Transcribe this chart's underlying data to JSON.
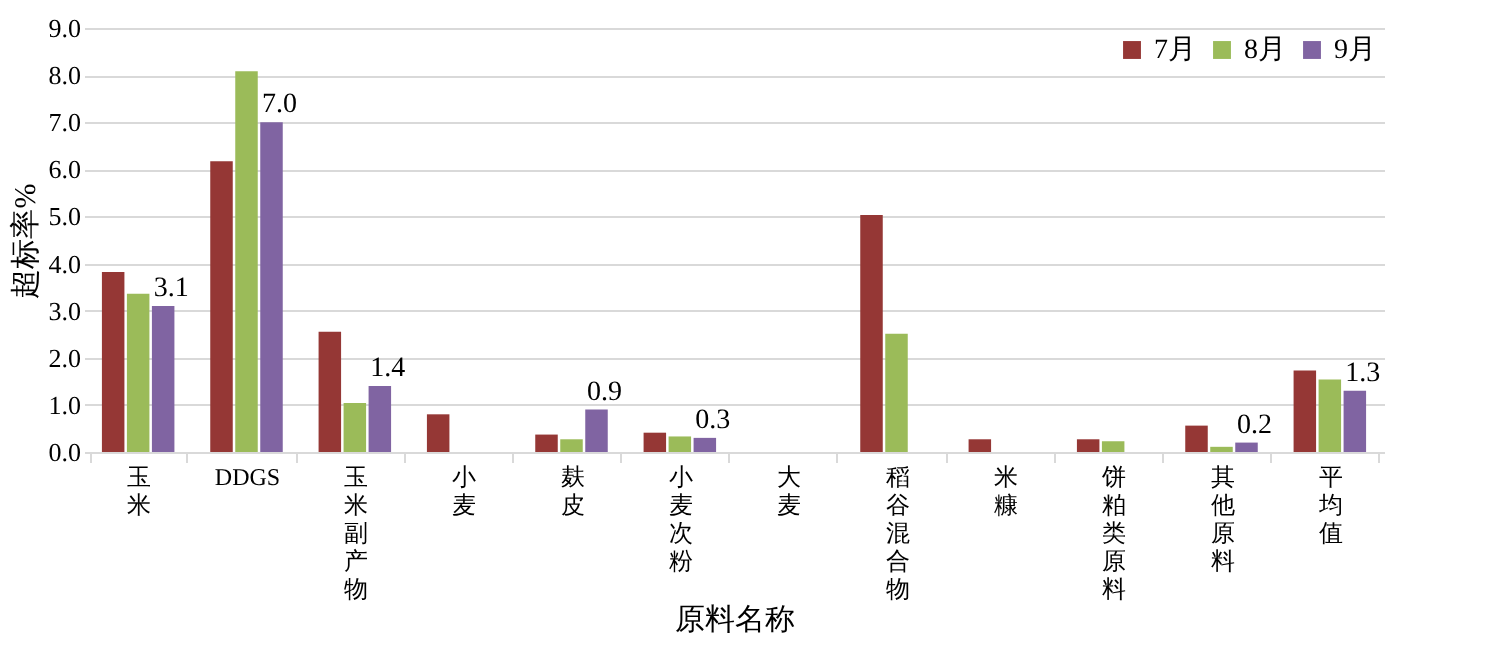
{
  "chart_data": {
    "type": "bar",
    "xlabel": "原料名称",
    "ylabel": "超标率%",
    "categories": [
      "玉米",
      "DDGS",
      "玉米副产物",
      "小麦",
      "麸皮",
      "小麦次粉",
      "大麦",
      "稻谷混合物",
      "米糠",
      "饼粕类原料",
      "其他原料",
      "平均值"
    ],
    "series": [
      {
        "name": "7月",
        "color": "#953735",
        "values": [
          3.82,
          6.17,
          2.55,
          0.8,
          0.37,
          0.41,
          0,
          5.03,
          0.27,
          0.27,
          0.56,
          1.73
        ]
      },
      {
        "name": "8月",
        "color": "#9bbb59",
        "values": [
          3.36,
          8.08,
          1.04,
          0,
          0.27,
          0.33,
          0,
          2.51,
          0,
          0.23,
          0.11,
          1.54
        ]
      },
      {
        "name": "9月",
        "color": "#8064a2",
        "values": [
          3.1,
          7.0,
          1.4,
          0,
          0.9,
          0.3,
          0,
          0,
          0,
          0,
          0.2,
          1.3
        ],
        "value_labels": [
          "3.1",
          "7.0",
          "1.4",
          null,
          "0.9",
          "0.3",
          null,
          null,
          null,
          null,
          "0.2",
          "1.3"
        ]
      }
    ],
    "ylim": [
      0,
      9
    ],
    "yticks": [
      {
        "value": 0,
        "label": "0.0"
      },
      {
        "value": 1,
        "label": "1.0"
      },
      {
        "value": 2,
        "label": "2.0"
      },
      {
        "value": 3,
        "label": "3.0"
      },
      {
        "value": 4,
        "label": "4.0"
      },
      {
        "value": 5,
        "label": "5.0"
      },
      {
        "value": 6,
        "label": "6.0"
      },
      {
        "value": 7,
        "label": "7.0"
      },
      {
        "value": 8,
        "label": "8.0"
      },
      {
        "value": 9,
        "label": "9.0"
      }
    ],
    "grid": "y",
    "legend": "top right"
  }
}
